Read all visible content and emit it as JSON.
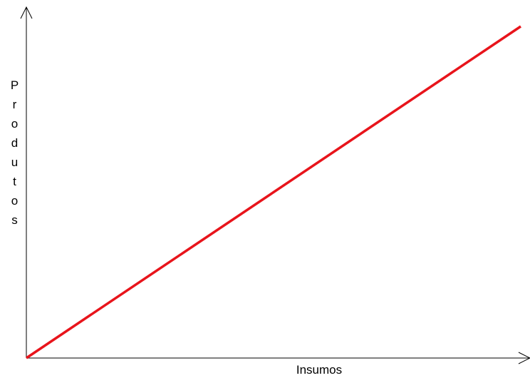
{
  "x_axis_label": "Insumos",
  "y_axis_label": "Produtos"
}
